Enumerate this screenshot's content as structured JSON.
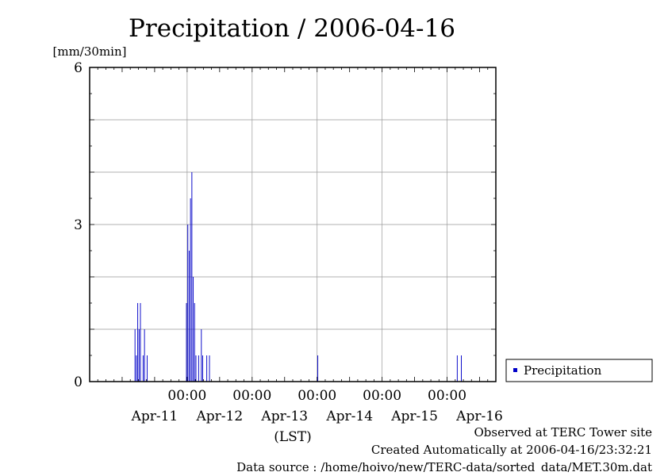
{
  "chart_data": {
    "type": "bar",
    "title": "Precipitation / 2006-04-16",
    "ylabel": "[mm/30min]",
    "xlabel": "(LST)",
    "ylim": [
      0,
      6
    ],
    "yticks": [
      "0",
      "3",
      "6"
    ],
    "xtick_times": [
      "00:00",
      "00:00",
      "00:00",
      "00:00",
      "00:00"
    ],
    "xtick_dates": [
      "Apr-11",
      "Apr-12",
      "Apr-13",
      "Apr-14",
      "Apr-15",
      "Apr-16"
    ],
    "grid": true,
    "legend_position": "right",
    "series": [
      {
        "name": "Precipitation",
        "color": "#0000c8",
        "points": [
          {
            "x": "2006-04-11 04:30",
            "y": 1.0
          },
          {
            "x": "2006-04-11 05:00",
            "y": 0.5
          },
          {
            "x": "2006-04-11 05:30",
            "y": 1.5
          },
          {
            "x": "2006-04-11 06:00",
            "y": 1.0
          },
          {
            "x": "2006-04-11 06:30",
            "y": 1.5
          },
          {
            "x": "2006-04-11 07:30",
            "y": 0.5
          },
          {
            "x": "2006-04-11 08:00",
            "y": 1.0
          },
          {
            "x": "2006-04-11 09:00",
            "y": 0.5
          },
          {
            "x": "2006-04-11 23:30",
            "y": 1.5
          },
          {
            "x": "2006-04-12 00:00",
            "y": 3.0
          },
          {
            "x": "2006-04-12 00:30",
            "y": 2.5
          },
          {
            "x": "2006-04-12 01:00",
            "y": 3.5
          },
          {
            "x": "2006-04-12 01:30",
            "y": 4.0
          },
          {
            "x": "2006-04-12 02:00",
            "y": 2.0
          },
          {
            "x": "2006-04-12 02:30",
            "y": 1.5
          },
          {
            "x": "2006-04-12 03:00",
            "y": 0.5
          },
          {
            "x": "2006-04-12 04:00",
            "y": 0.5
          },
          {
            "x": "2006-04-12 05:00",
            "y": 1.0
          },
          {
            "x": "2006-04-12 05:30",
            "y": 0.5
          },
          {
            "x": "2006-04-12 07:00",
            "y": 0.5
          },
          {
            "x": "2006-04-12 08:00",
            "y": 0.5
          },
          {
            "x": "2006-04-14 00:00",
            "y": 0.5
          },
          {
            "x": "2006-04-16 03:30",
            "y": 0.5
          },
          {
            "x": "2006-04-16 05:00",
            "y": 0.5
          }
        ]
      }
    ]
  },
  "footer": {
    "line1": "Observed at TERC Tower site",
    "line2": "Created Automatically at 2006-04-16/23:32:21",
    "line3": "Data source : /home/hoivo/new/TERC-data/sorted_data/MET.30m.dat"
  }
}
